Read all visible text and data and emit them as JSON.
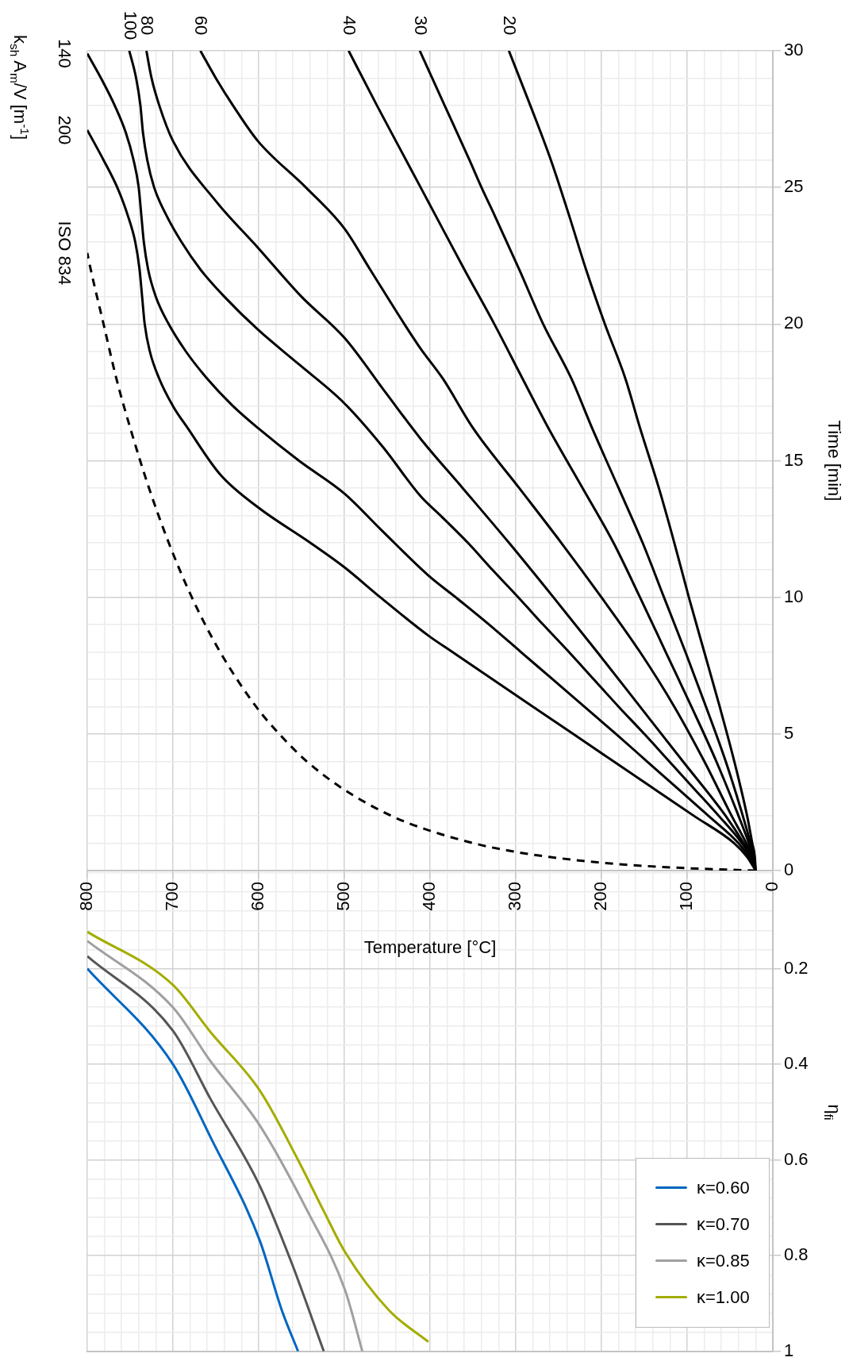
{
  "chart_data": [
    {
      "type": "line",
      "xlabel": "Temperature [°C]",
      "ylabel": "Time [min]",
      "annotations": [
        "k$_{sh}$ A$_{m}$/V [m$^{-1}$]"
      ],
      "xlim": [
        800,
        0
      ],
      "xticks": [
        0,
        {
          "value": 20,
          "label": null
        },
        {
          "value": 40,
          "label": null
        },
        {
          "value": 60,
          "label": null
        },
        {
          "value": 80,
          "label": null
        },
        100,
        {
          "value": 120,
          "label": null
        },
        {
          "value": 140,
          "label": null
        },
        {
          "value": 160,
          "label": null
        },
        {
          "value": 180,
          "label": null
        },
        200,
        {
          "value": 220,
          "label": null
        },
        {
          "value": 240,
          "label": null
        },
        {
          "value": 260,
          "label": null
        },
        {
          "value": 280,
          "label": null
        },
        300,
        {
          "value": 320,
          "label": null
        },
        {
          "value": 340,
          "label": null
        },
        {
          "value": 360,
          "label": null
        },
        {
          "value": 380,
          "label": null
        },
        400,
        {
          "value": 420,
          "label": null
        },
        {
          "value": 440,
          "label": null
        },
        {
          "value": 460,
          "label": null
        },
        {
          "value": 480,
          "label": null
        },
        500,
        {
          "value": 520,
          "label": null
        },
        {
          "value": 540,
          "label": null
        },
        {
          "value": 560,
          "label": null
        },
        {
          "value": 580,
          "label": null
        },
        600,
        {
          "value": 620,
          "label": null
        },
        {
          "value": 640,
          "label": null
        },
        {
          "value": 660,
          "label": null
        },
        {
          "value": 680,
          "label": null
        },
        700,
        {
          "value": 720,
          "label": null
        },
        {
          "value": 740,
          "label": null
        },
        {
          "value": 760,
          "label": null
        },
        {
          "value": 780,
          "label": null
        },
        800
      ],
      "ylim": [
        0,
        30
      ],
      "yticks": [
        0,
        {
          "value": 1,
          "label": null
        },
        {
          "value": 2,
          "label": null
        },
        {
          "value": 3,
          "label": null
        },
        {
          "value": 4,
          "label": null
        },
        5,
        {
          "value": 6,
          "label": null
        },
        {
          "value": 7,
          "label": null
        },
        {
          "value": 8,
          "label": null
        },
        {
          "value": 9,
          "label": null
        },
        10,
        {
          "value": 11,
          "label": null
        },
        {
          "value": 12,
          "label": null
        },
        {
          "value": 13,
          "label": null
        },
        {
          "value": 14,
          "label": null
        },
        15,
        {
          "value": 16,
          "label": null
        },
        {
          "value": 17,
          "label": null
        },
        {
          "value": 18,
          "label": null
        },
        {
          "value": 19,
          "label": null
        },
        20,
        {
          "value": 21,
          "label": null
        },
        {
          "value": 22,
          "label": null
        },
        {
          "value": 23,
          "label": null
        },
        {
          "value": 24,
          "label": null
        },
        25,
        {
          "value": 26,
          "label": null
        },
        {
          "value": 27,
          "label": null
        },
        {
          "value": 28,
          "label": null
        },
        {
          "value": 29,
          "label": null
        },
        30
      ],
      "grid": true,
      "marker": "none",
      "series": [
        {
          "name": "200",
          "color": "#000000",
          "x": [
            20,
            30,
            45,
            92,
            139,
            186,
            233,
            280,
            327,
            374,
            402,
            458,
            500,
            540,
            601,
            645,
            683,
            700,
            716,
            727,
            733,
            736,
            739,
            744,
            753,
            765,
            781,
            800
          ],
          "values": [
            0,
            0.5,
            1,
            2,
            3,
            4,
            5,
            6,
            7,
            8,
            8.6,
            10,
            11.1,
            12,
            13.3,
            14.5,
            16.2,
            17,
            18,
            19,
            20,
            21,
            22,
            23,
            24,
            25,
            26,
            27.1
          ]
        },
        {
          "name": "140",
          "color": "#000000",
          "x": [
            20,
            28,
            40,
            75,
            111,
            147,
            183,
            220,
            257,
            294,
            331,
            370,
            402,
            458,
            500,
            553,
            601,
            630,
            660,
            685,
            705,
            720,
            729,
            734,
            737,
            740,
            746,
            755,
            768,
            784,
            800
          ],
          "values": [
            0,
            0.5,
            1,
            2,
            3,
            4,
            5,
            6,
            7,
            8,
            9,
            10,
            10.8,
            12.5,
            13.8,
            15,
            16.2,
            17,
            18,
            19,
            20,
            21,
            22,
            23,
            24,
            25,
            26,
            27,
            28,
            29,
            29.9
          ]
        },
        {
          "name": "100",
          "color": "#000000",
          "x": [
            20,
            26,
            36,
            63,
            92,
            121,
            150,
            180,
            209,
            238,
            268,
            297,
            327,
            356,
            388,
            411,
            455,
            500,
            552,
            601,
            640,
            668,
            690,
            708,
            722,
            730,
            735,
            738,
            743,
            751
          ],
          "values": [
            0,
            0.5,
            1,
            2,
            3,
            4,
            5,
            6,
            7,
            8,
            9,
            10,
            11,
            12,
            13,
            13.7,
            15.5,
            17.1,
            18.5,
            19.8,
            21,
            22,
            23,
            24,
            25,
            26,
            27,
            28,
            29,
            30
          ]
        },
        {
          "name": "80",
          "color": "#000000",
          "x": [
            20,
            25,
            34,
            55,
            105,
            155,
            205,
            256,
            308,
            362,
            411,
            452,
            500,
            550,
            601,
            650,
            700,
            716,
            725,
            731
          ],
          "values": [
            0,
            0.5,
            1,
            2,
            4,
            6,
            8,
            10,
            12,
            14,
            15.8,
            17.5,
            19.5,
            21,
            22.8,
            24.5,
            26.7,
            28,
            29,
            30
          ]
        },
        {
          "name": "60",
          "color": "#000000",
          "x": [
            20,
            24,
            31,
            48,
            80,
            115,
            155,
            200,
            247,
            296,
            350,
            385,
            411,
            430,
            470,
            500,
            545,
            601,
            630,
            650,
            668
          ],
          "values": [
            0,
            0.5,
            1,
            2,
            4,
            6,
            8,
            10,
            12,
            14,
            16.2,
            18,
            19.1,
            20,
            22,
            23.5,
            25,
            26.7,
            28,
            29,
            30
          ]
        },
        {
          "name": "40",
          "color": "#000000",
          "x": [
            20,
            23,
            28,
            40,
            66,
            95,
            125,
            155,
            186,
            222,
            262,
            292,
            325,
            360,
            394,
            411,
            428,
            462,
            495
          ],
          "values": [
            0,
            0.5,
            1,
            2,
            4,
            6,
            8,
            10,
            12,
            14,
            16.2,
            18,
            20,
            22,
            24,
            25,
            26,
            28,
            30
          ]
        },
        {
          "name": "30",
          "color": "#000000",
          "x": [
            20,
            22,
            26,
            35,
            55,
            78,
            102,
            127,
            152,
            180,
            211,
            235,
            268,
            296,
            325,
            340,
            354,
            383,
            412
          ],
          "values": [
            0,
            0.5,
            1,
            2,
            4,
            6,
            8,
            10,
            12,
            14,
            16.2,
            18,
            20,
            22,
            24,
            25,
            26,
            28,
            30
          ]
        },
        {
          "name": "20",
          "color": "#000000",
          "x": [
            20,
            21,
            24,
            30,
            45,
            62,
            80,
            98,
            115,
            133,
            155,
            172,
            196,
            218,
            238,
            259,
            283,
            308
          ],
          "values": [
            0,
            0.5,
            1,
            2,
            4,
            6,
            8,
            10,
            12,
            14,
            16.2,
            18,
            20,
            22,
            24,
            26,
            28,
            30
          ]
        },
        {
          "name": "ISO 834",
          "color": "#000000",
          "line_style": "dashed",
          "x": [
            20,
            108,
            185,
            261,
            312,
            349,
            404,
            445,
            502,
            544,
            576,
            603,
            645,
            678,
            705,
            728,
            748,
            766,
            781,
            796,
            800
          ],
          "values": [
            0,
            0.1,
            0.25,
            0.5,
            0.75,
            1,
            1.5,
            2,
            3,
            4,
            5,
            6,
            8,
            10,
            12,
            14,
            16,
            18,
            20,
            22,
            22.6
          ]
        }
      ]
    },
    {
      "type": "line",
      "ylabel": "η$_{fi}$",
      "xlim": [
        800,
        0
      ],
      "xticks": [
        0,
        {
          "value": 20,
          "label": null
        },
        {
          "value": 40,
          "label": null
        },
        {
          "value": 60,
          "label": null
        },
        {
          "value": 80,
          "label": null
        },
        100,
        {
          "value": 120,
          "label": null
        },
        {
          "value": 140,
          "label": null
        },
        {
          "value": 160,
          "label": null
        },
        {
          "value": 180,
          "label": null
        },
        200,
        {
          "value": 220,
          "label": null
        },
        {
          "value": 240,
          "label": null
        },
        {
          "value": 260,
          "label": null
        },
        {
          "value": 280,
          "label": null
        },
        300,
        {
          "value": 320,
          "label": null
        },
        {
          "value": 340,
          "label": null
        },
        {
          "value": 360,
          "label": null
        },
        {
          "value": 380,
          "label": null
        },
        400,
        {
          "value": 420,
          "label": null
        },
        {
          "value": 440,
          "label": null
        },
        {
          "value": 460,
          "label": null
        },
        {
          "value": 480,
          "label": null
        },
        500,
        {
          "value": 520,
          "label": null
        },
        {
          "value": 540,
          "label": null
        },
        {
          "value": 560,
          "label": null
        },
        {
          "value": 580,
          "label": null
        },
        600,
        {
          "value": 620,
          "label": null
        },
        {
          "value": 640,
          "label": null
        },
        {
          "value": 660,
          "label": null
        },
        {
          "value": 680,
          "label": null
        },
        700,
        {
          "value": 720,
          "label": null
        },
        {
          "value": 740,
          "label": null
        },
        {
          "value": 760,
          "label": null
        },
        {
          "value": 780,
          "label": null
        },
        800
      ],
      "ylim": [
        1,
        0
      ],
      "yticks": [
        {
          "value": 0,
          "label": null
        },
        {
          "value": 0.04,
          "label": null
        },
        {
          "value": 0.08,
          "label": null
        },
        {
          "value": 0.12,
          "label": null
        },
        {
          "value": 0.16,
          "label": null
        },
        0.2,
        {
          "value": 0.24,
          "label": null
        },
        {
          "value": 0.28,
          "label": null
        },
        {
          "value": 0.32,
          "label": null
        },
        {
          "value": 0.36,
          "label": null
        },
        0.4,
        {
          "value": 0.44,
          "label": null
        },
        {
          "value": 0.48,
          "label": null
        },
        {
          "value": 0.52,
          "label": null
        },
        {
          "value": 0.56,
          "label": null
        },
        0.6,
        {
          "value": 0.64,
          "label": null
        },
        {
          "value": 0.68,
          "label": null
        },
        {
          "value": 0.72,
          "label": null
        },
        {
          "value": 0.76,
          "label": null
        },
        0.8,
        {
          "value": 0.84,
          "label": null
        },
        {
          "value": 0.88,
          "label": null
        },
        {
          "value": 0.92,
          "label": null
        },
        {
          "value": 0.96,
          "label": null
        },
        1
      ],
      "tick_labels": "y",
      "grid": true,
      "marker": "none",
      "legend": "bottom right",
      "series": [
        {
          "name": "κ=0.60",
          "color": "#0066c0",
          "x": [
            800,
            700,
            656,
            599,
            573,
            554
          ],
          "values": [
            0.2,
            0.4,
            0.553,
            0.767,
            0.914,
            1.0
          ]
        },
        {
          "name": "κ=0.70",
          "color": "#555555",
          "x": [
            800,
            700,
            656,
            599,
            562,
            524
          ],
          "values": [
            0.174,
            0.33,
            0.473,
            0.653,
            0.813,
            1.0
          ]
        },
        {
          "name": "κ=0.85",
          "color": "#a0a0a0",
          "x": [
            800,
            700,
            656,
            599,
            543,
            499,
            479
          ],
          "values": [
            0.142,
            0.281,
            0.394,
            0.527,
            0.707,
            0.873,
            1.0
          ]
        },
        {
          "name": "κ=1.00",
          "color": "#a3ad00",
          "x": [
            800,
            700,
            656,
            599,
            554,
            524,
            499,
            448,
            402
          ],
          "values": [
            0.123,
            0.234,
            0.333,
            0.454,
            0.6,
            0.707,
            0.793,
            0.914,
            0.98
          ]
        }
      ]
    }
  ]
}
